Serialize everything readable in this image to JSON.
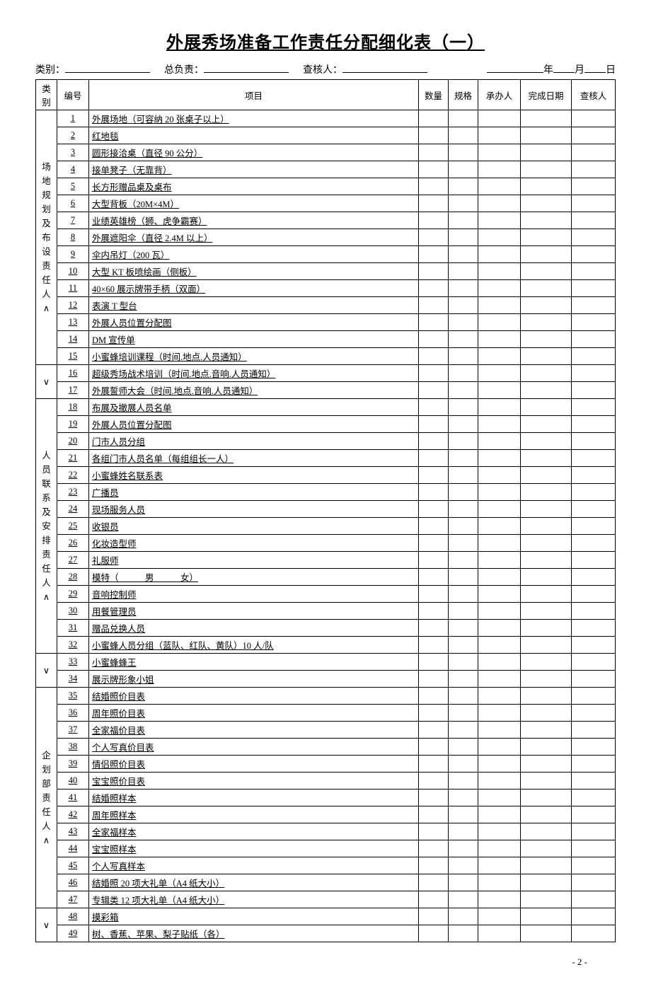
{
  "title": "外展秀场准备工作责任分配细化表（一）",
  "meta": {
    "category_label": "类别：",
    "leader_label": "总负责：",
    "checker_label": "查核人：",
    "year_label": "年",
    "month_label": "月",
    "day_label": "日"
  },
  "headers": {
    "category": "类别",
    "number": "编号",
    "item": "项目",
    "qty": "数量",
    "spec": "规格",
    "owner": "承办人",
    "done_date": "完成日期",
    "checker": "查核人"
  },
  "sections": [
    {
      "label": "场地规划及布设责任人∧",
      "end_label": "∨",
      "rows": [
        {
          "n": "1",
          "item": "外展场地（可容纳 20 张桌子以上）"
        },
        {
          "n": "2",
          "item": "红地毯"
        },
        {
          "n": "3",
          "item": "圆形接洽桌（直径 90 公分）"
        },
        {
          "n": "4",
          "item": "接单凳子（无靠背）"
        },
        {
          "n": "5",
          "item": "长方形赠品桌及桌布"
        },
        {
          "n": "6",
          "item": "大型背板（20M×4M）"
        },
        {
          "n": "7",
          "item": "业绩英雄榜（狮、虎争霸赛）"
        },
        {
          "n": "8",
          "item": "外展遮阳伞（直径 2.4M 以上）"
        },
        {
          "n": "9",
          "item": "伞内吊灯（200 瓦）"
        },
        {
          "n": "10",
          "item": "大型 KT 板喷绘画（侧板）"
        },
        {
          "n": "11",
          "item": "40×60 展示牌带手柄（双面）"
        },
        {
          "n": "12",
          "item": "表演 T 型台"
        },
        {
          "n": "13",
          "item": "外展人员位置分配图"
        },
        {
          "n": "14",
          "item": "DM 宣传单"
        },
        {
          "n": "15",
          "item": "小蜜蜂培训课程（时间.地点.人员通知）"
        },
        {
          "n": "16",
          "item": "超级秀场战术培训（时间.地点.音响.人员通知）"
        },
        {
          "n": "17",
          "item": "外展誓师大会（时间.地点.音响.人员通知）"
        }
      ]
    },
    {
      "label": "人员联系及安排责任人∧",
      "end_label": "∨",
      "rows": [
        {
          "n": "18",
          "item": "布展及撤展人员名单"
        },
        {
          "n": "19",
          "item": "外展人员位置分配图"
        },
        {
          "n": "20",
          "item": "门市人员分组"
        },
        {
          "n": "21",
          "item": "各组门市人员名单（每组组长一人）"
        },
        {
          "n": "22",
          "item": "小蜜蜂姓名联系表"
        },
        {
          "n": "23",
          "item": "广播员"
        },
        {
          "n": "24",
          "item": "现场服务人员"
        },
        {
          "n": "25",
          "item": "收银员"
        },
        {
          "n": "26",
          "item": "化妆造型师"
        },
        {
          "n": "27",
          "item": "礼服师"
        },
        {
          "n": "28",
          "item": "模特（　　　男　　　女）"
        },
        {
          "n": "29",
          "item": "音响控制师"
        },
        {
          "n": "30",
          "item": "用餐管理员"
        },
        {
          "n": "31",
          "item": "赠品兑换人员"
        },
        {
          "n": "32",
          "item": "小蜜蜂人员分组（蓝队、红队、黄队）10 人/队"
        },
        {
          "n": "33",
          "item": "小蜜蜂蜂王"
        },
        {
          "n": "34",
          "item": "展示牌形象小姐"
        }
      ]
    },
    {
      "label": "企划部责任人∧",
      "end_label": "∨",
      "rows": [
        {
          "n": "35",
          "item": "结婚照价目表"
        },
        {
          "n": "36",
          "item": "周年照价目表"
        },
        {
          "n": "37",
          "item": "全家福价目表"
        },
        {
          "n": "38",
          "item": "个人写真价目表"
        },
        {
          "n": "39",
          "item": "情侣照价目表"
        },
        {
          "n": "40",
          "item": "宝宝照价目表"
        },
        {
          "n": "41",
          "item": "结婚照样本"
        },
        {
          "n": "42",
          "item": "周年照样本"
        },
        {
          "n": "43",
          "item": "全家福样本"
        },
        {
          "n": "44",
          "item": "宝宝照样本"
        },
        {
          "n": "45",
          "item": "个人写真样本"
        },
        {
          "n": "46",
          "item": "结婚照 20 项大礼单（A4 纸大小）"
        },
        {
          "n": "47",
          "item": "专辑类 12 项大礼单（A4 纸大小）"
        },
        {
          "n": "48",
          "item": "摸彩箱"
        },
        {
          "n": "49",
          "item": "树、香蕉、苹果、梨子贴纸（各）"
        }
      ]
    }
  ],
  "page_number": "- 2 -",
  "style": {
    "background": "#ffffff",
    "text_color": "#000000",
    "border_color": "#000000",
    "title_fontsize": 24,
    "body_fontsize": 13
  }
}
